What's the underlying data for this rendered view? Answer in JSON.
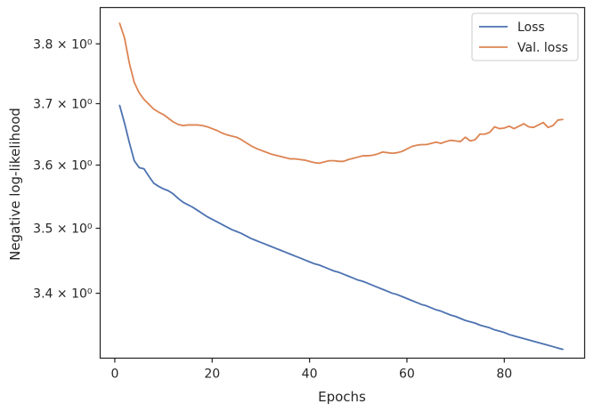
{
  "chart_data": {
    "type": "line",
    "xlabel": "Epochs",
    "ylabel": "Negative log-likelihood",
    "xlim": [
      -3,
      96.5
    ],
    "ylim": [
      3.303,
      3.862
    ],
    "y_scale": "log",
    "grid": false,
    "legend_position": "top-right",
    "x_ticks": [
      {
        "value": 0,
        "label": "0"
      },
      {
        "value": 20,
        "label": "20"
      },
      {
        "value": 40,
        "label": "40"
      },
      {
        "value": 60,
        "label": "60"
      },
      {
        "value": 80,
        "label": "80"
      }
    ],
    "y_ticks": [
      {
        "value": 3.4,
        "label": "3.4 × 10⁰"
      },
      {
        "value": 3.5,
        "label": "3.5 × 10⁰"
      },
      {
        "value": 3.6,
        "label": "3.6 × 10⁰"
      },
      {
        "value": 3.7,
        "label": "3.7 × 10⁰"
      },
      {
        "value": 3.8,
        "label": "3.8 × 10⁰"
      }
    ],
    "series": [
      {
        "name": "Loss",
        "color": "#4c72b0",
        "x": [
          1,
          2,
          3,
          4,
          5,
          6,
          7,
          8,
          9,
          10,
          11,
          12,
          13,
          14,
          15,
          16,
          17,
          18,
          19,
          20,
          21,
          22,
          23,
          24,
          25,
          26,
          27,
          28,
          29,
          30,
          31,
          32,
          33,
          34,
          35,
          36,
          37,
          38,
          39,
          40,
          41,
          42,
          43,
          44,
          45,
          46,
          47,
          48,
          49,
          50,
          51,
          52,
          53,
          54,
          55,
          56,
          57,
          58,
          59,
          60,
          61,
          62,
          63,
          64,
          65,
          66,
          67,
          68,
          69,
          70,
          71,
          72,
          73,
          74,
          75,
          76,
          77,
          78,
          79,
          80,
          81,
          82,
          83,
          84,
          85,
          86,
          87,
          88,
          89,
          90,
          91,
          92
        ],
        "values": [
          3.697,
          3.668,
          3.636,
          3.607,
          3.596,
          3.594,
          3.582,
          3.571,
          3.566,
          3.562,
          3.559,
          3.554,
          3.547,
          3.541,
          3.537,
          3.533,
          3.528,
          3.523,
          3.518,
          3.514,
          3.51,
          3.506,
          3.502,
          3.498,
          3.495,
          3.492,
          3.488,
          3.484,
          3.481,
          3.478,
          3.475,
          3.472,
          3.469,
          3.466,
          3.463,
          3.46,
          3.457,
          3.454,
          3.451,
          3.448,
          3.445,
          3.443,
          3.44,
          3.437,
          3.434,
          3.432,
          3.429,
          3.426,
          3.423,
          3.42,
          3.418,
          3.415,
          3.412,
          3.409,
          3.406,
          3.403,
          3.4,
          3.398,
          3.395,
          3.392,
          3.389,
          3.386,
          3.383,
          3.381,
          3.378,
          3.375,
          3.373,
          3.37,
          3.367,
          3.365,
          3.362,
          3.359,
          3.357,
          3.355,
          3.352,
          3.35,
          3.348,
          3.345,
          3.343,
          3.341,
          3.338,
          3.336,
          3.334,
          3.332,
          3.33,
          3.328,
          3.326,
          3.324,
          3.322,
          3.32,
          3.318,
          3.316
        ]
      },
      {
        "name": "Val. loss",
        "color": "#dd8452",
        "x": [
          1,
          2,
          3,
          4,
          5,
          6,
          7,
          8,
          9,
          10,
          11,
          12,
          13,
          14,
          15,
          16,
          17,
          18,
          19,
          20,
          21,
          22,
          23,
          24,
          25,
          26,
          27,
          28,
          29,
          30,
          31,
          32,
          33,
          34,
          35,
          36,
          37,
          38,
          39,
          40,
          41,
          42,
          43,
          44,
          45,
          46,
          47,
          48,
          49,
          50,
          51,
          52,
          53,
          54,
          55,
          56,
          57,
          58,
          59,
          60,
          61,
          62,
          63,
          64,
          65,
          66,
          67,
          68,
          69,
          70,
          71,
          72,
          73,
          74,
          75,
          76,
          77,
          78,
          79,
          80,
          81,
          82,
          83,
          84,
          85,
          86,
          87,
          88,
          89,
          90,
          91,
          92
        ],
        "values": [
          3.835,
          3.81,
          3.767,
          3.735,
          3.718,
          3.707,
          3.699,
          3.691,
          3.686,
          3.682,
          3.676,
          3.67,
          3.666,
          3.664,
          3.665,
          3.665,
          3.665,
          3.664,
          3.662,
          3.659,
          3.656,
          3.652,
          3.649,
          3.647,
          3.645,
          3.641,
          3.636,
          3.631,
          3.627,
          3.624,
          3.621,
          3.618,
          3.616,
          3.614,
          3.612,
          3.61,
          3.61,
          3.609,
          3.608,
          3.606,
          3.604,
          3.603,
          3.605,
          3.607,
          3.607,
          3.606,
          3.606,
          3.609,
          3.611,
          3.613,
          3.615,
          3.615,
          3.616,
          3.618,
          3.621,
          3.62,
          3.619,
          3.62,
          3.622,
          3.626,
          3.63,
          3.632,
          3.633,
          3.633,
          3.635,
          3.637,
          3.635,
          3.638,
          3.64,
          3.639,
          3.638,
          3.645,
          3.639,
          3.641,
          3.65,
          3.65,
          3.653,
          3.662,
          3.659,
          3.66,
          3.663,
          3.659,
          3.663,
          3.667,
          3.662,
          3.661,
          3.665,
          3.669,
          3.661,
          3.664,
          3.673,
          3.674
        ]
      }
    ]
  }
}
